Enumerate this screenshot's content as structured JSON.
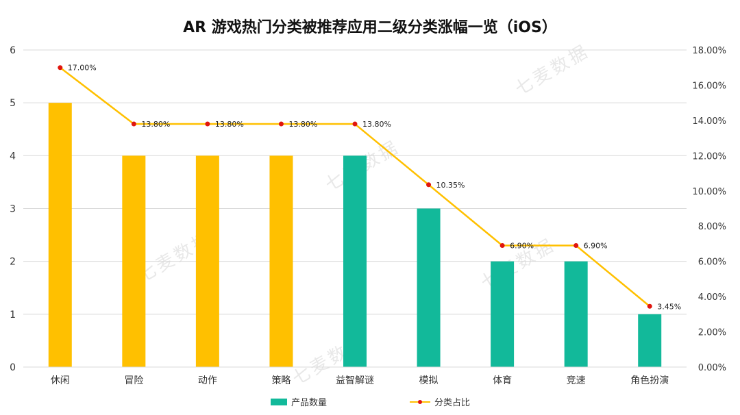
{
  "colors": {
    "bar_yellow": "#FFC000",
    "bar_teal": "#12B99A",
    "line": "#FFC000",
    "marker": "#E0160E",
    "grid": "#D9D9D9",
    "axis_text": "#333333"
  },
  "watermark_text": "七麦数据",
  "chart_data": {
    "type": "bar",
    "title": "AR 游戏热门分类被推荐应用二级分类涨幅一览（iOS）",
    "categories": [
      "休闲",
      "冒险",
      "动作",
      "策略",
      "益智解谜",
      "模拟",
      "体育",
      "竞速",
      "角色扮演"
    ],
    "series": [
      {
        "name": "产品数量",
        "kind": "bar",
        "axis": "left",
        "values": [
          5,
          4,
          4,
          4,
          4,
          3,
          2,
          2,
          1
        ],
        "bar_color_keys": [
          "yellow",
          "yellow",
          "yellow",
          "yellow",
          "teal",
          "teal",
          "teal",
          "teal",
          "teal"
        ]
      },
      {
        "name": "分类占比",
        "kind": "line",
        "axis": "right",
        "values": [
          17.0,
          13.8,
          13.8,
          13.8,
          13.8,
          10.35,
          6.9,
          6.9,
          3.45
        ],
        "labels": [
          "17.00%",
          "13.80%",
          "13.80%",
          "13.80%",
          "13.80%",
          "10.35%",
          "6.90%",
          "6.90%",
          "3.45%"
        ]
      }
    ],
    "y_left": {
      "lim": [
        0,
        6
      ],
      "ticks": [
        "0",
        "1",
        "2",
        "3",
        "4",
        "5",
        "6"
      ]
    },
    "y_right": {
      "lim": [
        0,
        18
      ],
      "ticks": [
        "0.00%",
        "2.00%",
        "4.00%",
        "6.00%",
        "8.00%",
        "10.00%",
        "12.00%",
        "14.00%",
        "16.00%",
        "18.00%"
      ]
    },
    "grid": true,
    "legend": {
      "position": "bottom",
      "items": [
        "产品数量",
        "分类占比"
      ]
    }
  }
}
